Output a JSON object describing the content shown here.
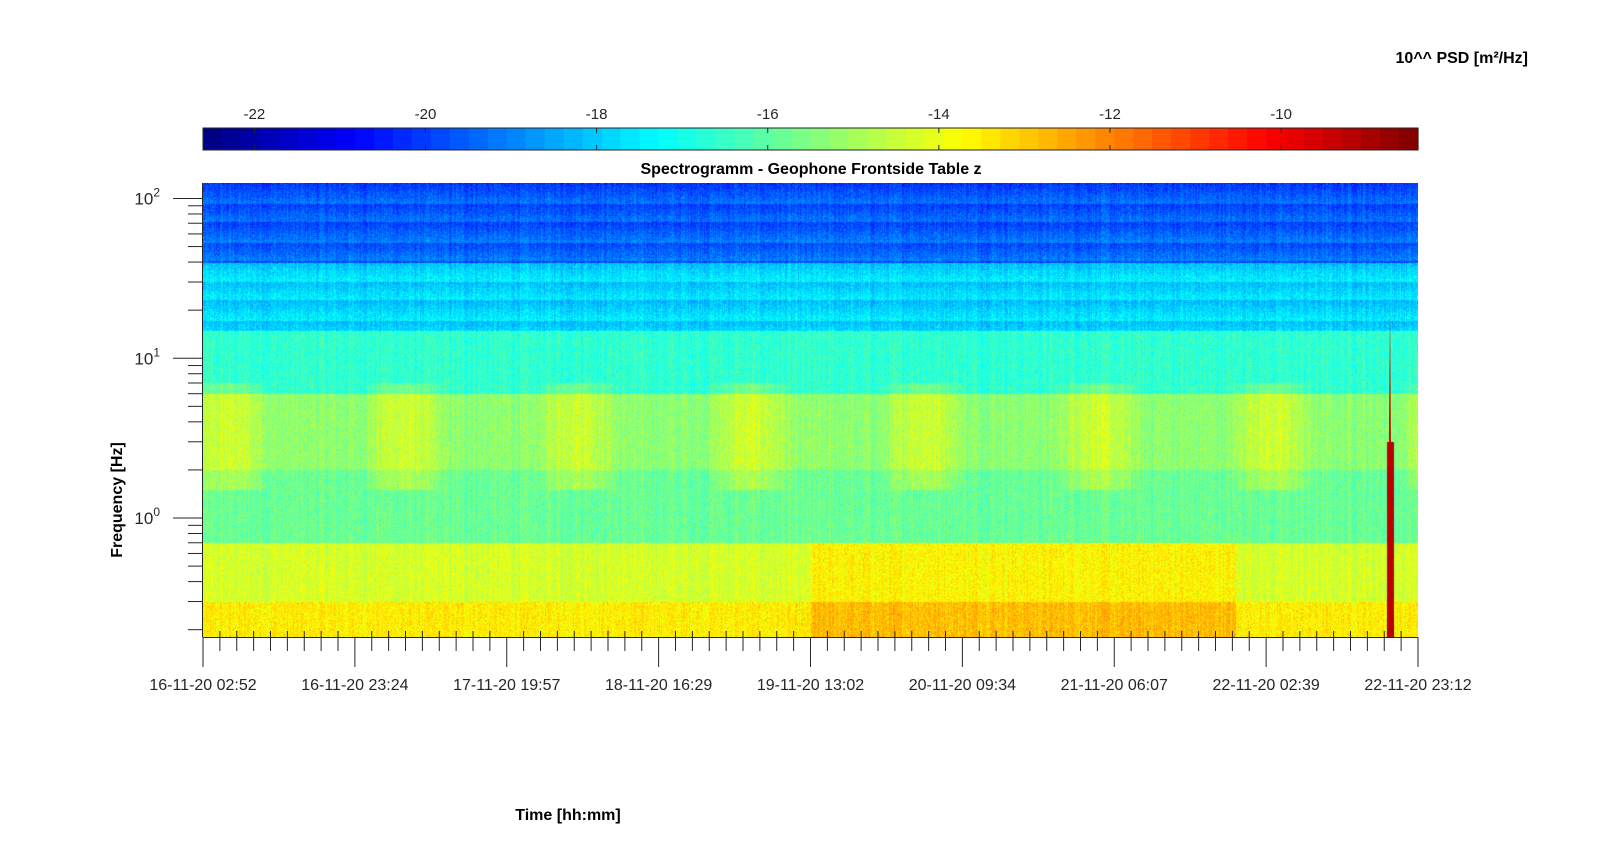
{
  "chart_data": {
    "type": "heatmap",
    "title": "Spectrogramm - Geophone Frontside Table z",
    "xlabel": "Time [hh:mm]",
    "ylabel": "Frequency [Hz]",
    "colorbar": {
      "label": "10^^ PSD [m²/Hz]",
      "range": [
        -22.6,
        -8.4
      ],
      "ticks": [
        -22,
        -20,
        -18,
        -16,
        -14,
        -12,
        -10
      ],
      "colormap": "jet",
      "placement": "top"
    },
    "x_ticks": [
      "16-11-20 02:52",
      "16-11-20 23:24",
      "17-11-20 19:57",
      "18-11-20 16:29",
      "19-11-20 13:02",
      "20-11-20 09:34",
      "21-11-20 06:07",
      "22-11-20 02:39",
      "22-11-20 23:12"
    ],
    "x_range_hours": [
      0,
      164.33
    ],
    "y_scale": "log",
    "y_range": [
      0.18,
      125
    ],
    "y_ticks": [
      {
        "value": 1,
        "base": "10",
        "exp": "0"
      },
      {
        "value": 10,
        "base": "10",
        "exp": "1"
      },
      {
        "value": 100,
        "base": "10",
        "exp": "2"
      }
    ],
    "description_of_values": [
      {
        "freq_band": "40-125 Hz",
        "log10_psd": -19.5
      },
      {
        "freq_band": "15-40 Hz",
        "log10_psd": -17.8
      },
      {
        "freq_band": "6-15 Hz",
        "log10_psd": -16.6
      },
      {
        "freq_band": "2-6 Hz",
        "log10_psd": -15.2
      },
      {
        "freq_band": "0.7-2 Hz",
        "log10_psd": -15.7
      },
      {
        "freq_band": "0.2-0.7 Hz",
        "log10_psd": -13.6
      }
    ],
    "annotations": [
      {
        "type": "event",
        "time": "22-11-20 20:30",
        "log10_psd_peak": -9.2
      }
    ]
  }
}
